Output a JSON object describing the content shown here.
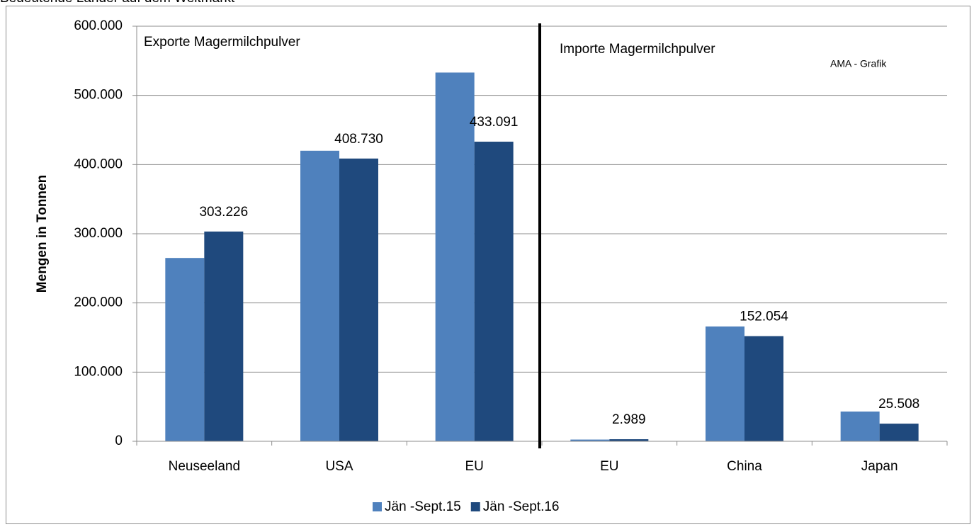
{
  "chart_data": {
    "type": "bar",
    "title": "Bedeutende Länder auf dem Weltmarkt",
    "y_label": "Mengen in Tonnen",
    "annotations": [
      "Exporte Magermilchpulver",
      "Importe Magermilchpulver",
      "AMA - Grafik"
    ],
    "categories": [
      "Neuseeland",
      "USA",
      "EU",
      "EU",
      "China",
      "Japan"
    ],
    "series": [
      {
        "name": "Jän -Sept.15",
        "color": "#4f81bd",
        "values": [
          265000,
          420000,
          533000,
          2500,
          166000,
          43000
        ]
      },
      {
        "name": "Jän -Sept.16",
        "color": "#1f497d",
        "values": [
          303226,
          408730,
          433091,
          2989,
          152054,
          25508
        ],
        "value_labels": [
          "303.226",
          "408.730",
          "433.091",
          "2.989",
          "152.054",
          "25.508"
        ]
      }
    ],
    "ylim": [
      0,
      600000
    ],
    "yticks": [
      0,
      {
        "value": 100000,
        "label": "100.000"
      },
      {
        "value": 200000,
        "label": "200.000"
      },
      {
        "value": 300000,
        "label": "300.000"
      },
      {
        "value": 400000,
        "label": "400.000"
      },
      {
        "value": 500000,
        "label": "500.000"
      },
      {
        "value": 600000,
        "label": "600.000"
      }
    ],
    "grid": true,
    "legend": "bottom"
  }
}
